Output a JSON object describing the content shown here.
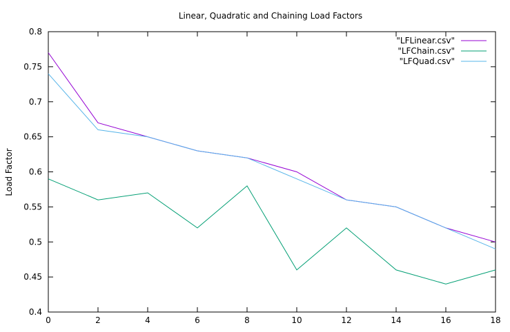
{
  "chart_data": {
    "type": "line",
    "title": "Linear, Quadratic and Chaining Load Factors",
    "xlabel": "",
    "ylabel": "Load Factor",
    "xlim": [
      0,
      18
    ],
    "ylim": [
      0.4,
      0.8
    ],
    "x_ticks": [
      0,
      2,
      4,
      6,
      8,
      10,
      12,
      14,
      16,
      18
    ],
    "x_tick_labels": [
      "0",
      "2",
      "4",
      "6",
      "8",
      "10",
      "12",
      "14",
      "16",
      "18"
    ],
    "y_ticks": [
      0.4,
      0.45,
      0.5,
      0.55,
      0.6,
      0.65,
      0.7,
      0.75,
      0.8
    ],
    "y_tick_labels": [
      "0.4",
      "0.45",
      "0.5",
      "0.55",
      "0.6",
      "0.65",
      "0.7",
      "0.75",
      "0.8"
    ],
    "grid": false,
    "legend_position": "top-right",
    "x": [
      0,
      2,
      4,
      6,
      8,
      10,
      12,
      14,
      16,
      18
    ],
    "series": [
      {
        "name": "\"LFLinear.csv\"",
        "color": "#9400d3",
        "values": [
          0.77,
          0.67,
          0.65,
          0.63,
          0.62,
          0.6,
          0.56,
          0.55,
          0.52,
          0.5
        ]
      },
      {
        "name": "\"LFChain.csv\"",
        "color": "#009e73",
        "values": [
          0.59,
          0.56,
          0.57,
          0.52,
          0.58,
          0.46,
          0.52,
          0.46,
          0.44,
          0.46
        ]
      },
      {
        "name": "\"LFQuad.csv\"",
        "color": "#56b4e9",
        "values": [
          0.74,
          0.66,
          0.65,
          0.63,
          0.62,
          0.59,
          0.56,
          0.55,
          0.52,
          0.49
        ]
      }
    ]
  }
}
